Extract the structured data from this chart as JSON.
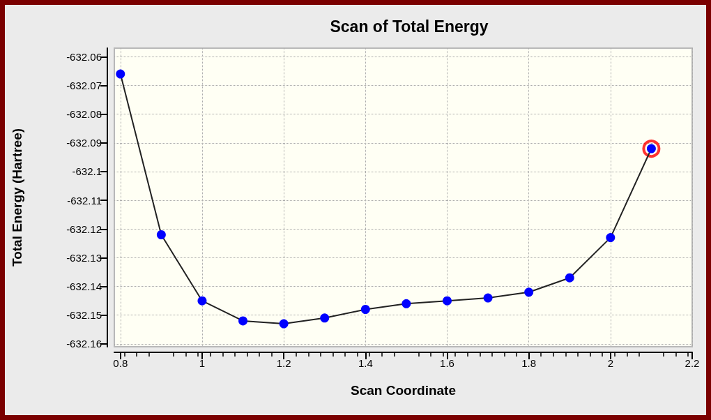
{
  "chart_data": {
    "type": "line",
    "title": "Scan of Total Energy",
    "xlabel": "Scan Coordinate",
    "ylabel": "Total Energy (Hartree)",
    "xlim": [
      0.785,
      2.2
    ],
    "xticks": [
      0.8,
      1,
      1.2,
      1.4,
      1.6,
      1.8,
      2,
      2.2
    ],
    "ylim": [
      -632.161,
      -632.057
    ],
    "yticks": [
      -632.06,
      -632.07,
      -632.08,
      -632.09,
      -632.1,
      -632.11,
      -632.12,
      -632.13,
      -632.14,
      -632.15,
      -632.16
    ],
    "grid": true,
    "marker": "circle",
    "line_style": "solid",
    "series": [
      {
        "color": "#0000ff",
        "x": [
          0.8,
          0.9,
          1.0,
          1.1,
          1.2,
          1.3,
          1.4,
          1.5,
          1.6,
          1.7,
          1.8,
          1.9,
          2.0,
          2.1
        ],
        "values": [
          -632.066,
          -632.122,
          -632.145,
          -632.152,
          -632.153,
          -632.151,
          -632.148,
          -632.146,
          -632.145,
          -632.144,
          -632.142,
          -632.137,
          -632.123,
          -632.092
        ]
      },
      {
        "type": "scatter",
        "color": "#ff0000",
        "x": [
          2.1
        ],
        "values": [
          -632.092
        ]
      }
    ]
  }
}
